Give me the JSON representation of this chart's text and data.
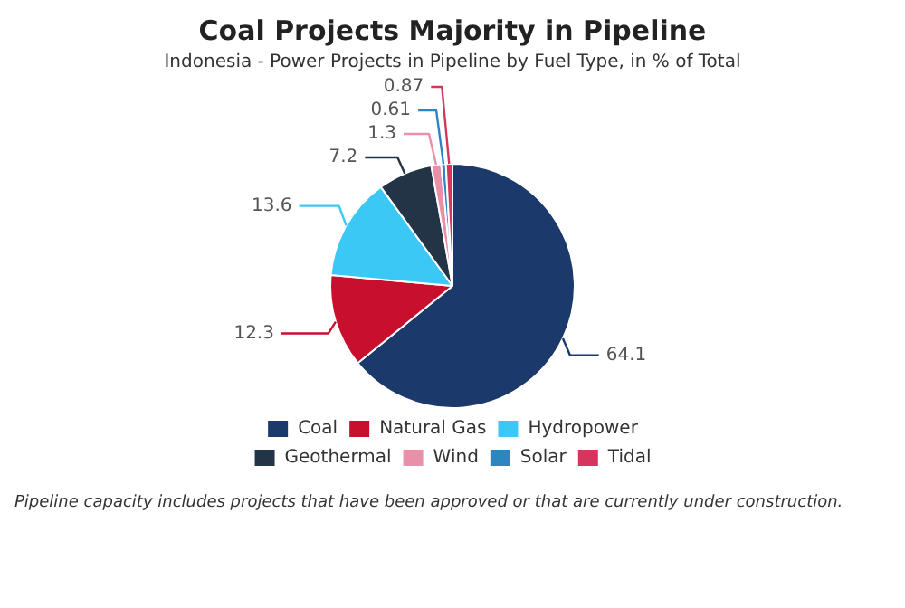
{
  "chart_data": {
    "type": "pie",
    "title": "Coal Projects Majority in Pipeline",
    "subtitle": "Indonesia - Power Projects in Pipeline by Fuel Type, in % of Total",
    "categories": [
      "Coal",
      "Natural Gas",
      "Hydropower",
      "Geothermal",
      "Wind",
      "Solar",
      "Tidal"
    ],
    "values": [
      64.1,
      12.3,
      13.6,
      7.2,
      1.3,
      0.61,
      0.87
    ],
    "colors": [
      "#1b3a6b",
      "#c8102e",
      "#3cc8f4",
      "#243447",
      "#e98fa8",
      "#2e86c1",
      "#d6365e"
    ],
    "data_labels": true,
    "legend": "bottom",
    "annotations": [
      "Pipeline capacity includes projects that have been approved or that are currently under construction."
    ]
  }
}
